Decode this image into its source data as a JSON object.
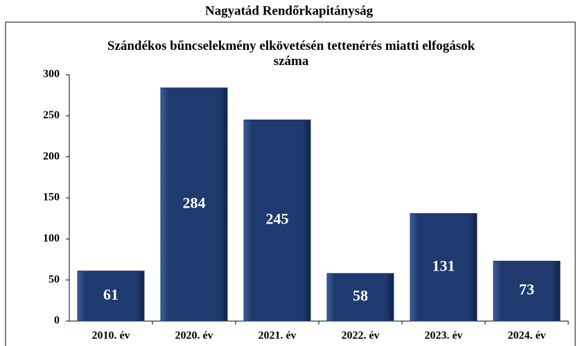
{
  "chart_data": {
    "type": "bar",
    "title": "Nagyatád Rendőrkapitányság",
    "subtitle": "Szándékos bűncselekmény elkövetésén tettenérés miatti elfogások száma",
    "categories": [
      "2010. év",
      "2020. év",
      "2021. év",
      "2022. év",
      "2023. év",
      "2024. év"
    ],
    "values": [
      61,
      284,
      245,
      58,
      131,
      73
    ],
    "color": "#1f3a6e",
    "ylim": [
      0,
      300
    ],
    "yticks": [
      0,
      50,
      100,
      150,
      200,
      250,
      300
    ],
    "grid": false
  }
}
